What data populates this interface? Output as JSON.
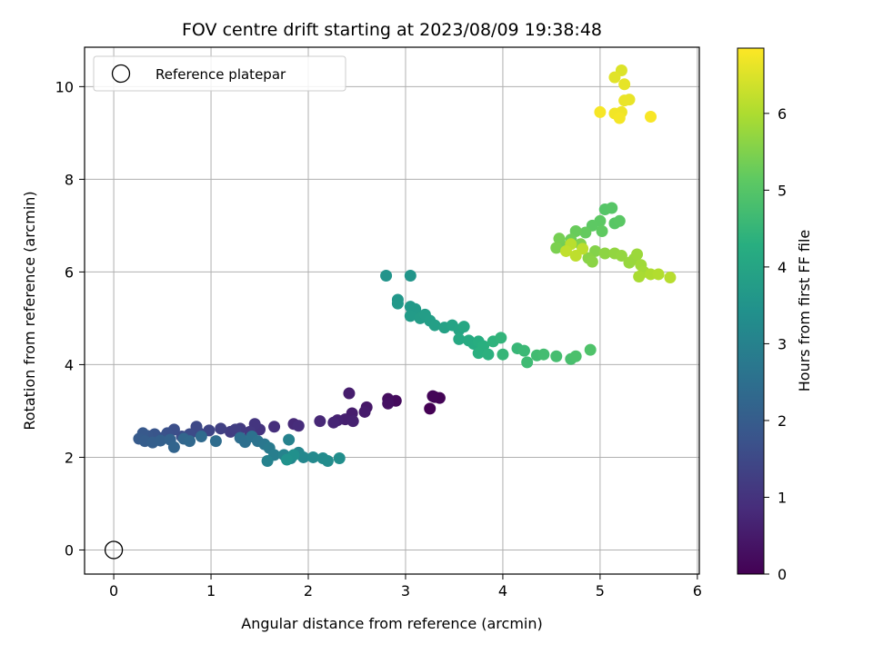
{
  "chart_data": {
    "type": "scatter",
    "title": "FOV centre drift starting at 2023/08/09 19:38:48",
    "xlabel": "Angular distance from reference (arcmin)",
    "ylabel": "Rotation from reference (arcmin)",
    "xlim": [
      -0.3,
      6.02
    ],
    "ylim": [
      -0.52,
      10.85
    ],
    "xticks": [
      "0",
      "1",
      "2",
      "3",
      "4",
      "5",
      "6"
    ],
    "yticks": [
      "0",
      "2",
      "4",
      "6",
      "8",
      "10"
    ],
    "grid": true,
    "legend": {
      "placement": "top-left",
      "entries": [
        "Reference platepar"
      ]
    },
    "reference_point": {
      "x": 0,
      "y": 0,
      "marker": "open-circle"
    },
    "colorbar": {
      "label": "Hours from first FF file",
      "colormap": "viridis",
      "range": [
        0,
        6.85
      ],
      "ticks": [
        "0",
        "1",
        "2",
        "3",
        "4",
        "5",
        "6"
      ]
    },
    "points": [
      {
        "x": 3.25,
        "y": 3.05,
        "c": 0.0
      },
      {
        "x": 3.3,
        "y": 3.3,
        "c": 0.02
      },
      {
        "x": 3.35,
        "y": 3.28,
        "c": 0.05
      },
      {
        "x": 3.28,
        "y": 3.32,
        "c": 0.08
      },
      {
        "x": 2.9,
        "y": 3.22,
        "c": 0.2
      },
      {
        "x": 2.82,
        "y": 3.26,
        "c": 0.25
      },
      {
        "x": 2.82,
        "y": 3.16,
        "c": 0.3
      },
      {
        "x": 2.6,
        "y": 3.08,
        "c": 0.45
      },
      {
        "x": 2.58,
        "y": 2.98,
        "c": 0.5
      },
      {
        "x": 2.45,
        "y": 2.95,
        "c": 0.55
      },
      {
        "x": 2.42,
        "y": 3.38,
        "c": 0.55
      },
      {
        "x": 2.38,
        "y": 2.82,
        "c": 0.6
      },
      {
        "x": 2.46,
        "y": 2.78,
        "c": 0.62
      },
      {
        "x": 2.3,
        "y": 2.8,
        "c": 0.65
      },
      {
        "x": 2.26,
        "y": 2.75,
        "c": 0.7
      },
      {
        "x": 2.12,
        "y": 2.78,
        "c": 0.75
      },
      {
        "x": 1.85,
        "y": 2.72,
        "c": 0.8
      },
      {
        "x": 1.9,
        "y": 2.68,
        "c": 0.85
      },
      {
        "x": 1.65,
        "y": 2.66,
        "c": 0.9
      },
      {
        "x": 1.5,
        "y": 2.6,
        "c": 1.0
      },
      {
        "x": 1.45,
        "y": 2.72,
        "c": 1.05
      },
      {
        "x": 1.4,
        "y": 2.55,
        "c": 1.1
      },
      {
        "x": 1.3,
        "y": 2.62,
        "c": 1.15
      },
      {
        "x": 1.2,
        "y": 2.55,
        "c": 1.2
      },
      {
        "x": 1.25,
        "y": 2.6,
        "c": 1.25
      },
      {
        "x": 1.1,
        "y": 2.62,
        "c": 1.3
      },
      {
        "x": 0.98,
        "y": 2.58,
        "c": 1.4
      },
      {
        "x": 0.88,
        "y": 2.52,
        "c": 1.45
      },
      {
        "x": 0.85,
        "y": 2.66,
        "c": 1.5
      },
      {
        "x": 0.78,
        "y": 2.5,
        "c": 1.55
      },
      {
        "x": 0.7,
        "y": 2.45,
        "c": 1.6
      },
      {
        "x": 0.62,
        "y": 2.6,
        "c": 1.65
      },
      {
        "x": 0.55,
        "y": 2.52,
        "c": 1.7
      },
      {
        "x": 0.5,
        "y": 2.42,
        "c": 1.75
      },
      {
        "x": 0.42,
        "y": 2.5,
        "c": 1.8
      },
      {
        "x": 0.35,
        "y": 2.46,
        "c": 1.85
      },
      {
        "x": 0.3,
        "y": 2.52,
        "c": 1.9
      },
      {
        "x": 0.26,
        "y": 2.4,
        "c": 1.95
      },
      {
        "x": 0.32,
        "y": 2.35,
        "c": 2.0
      },
      {
        "x": 0.4,
        "y": 2.32,
        "c": 2.05
      },
      {
        "x": 0.48,
        "y": 2.36,
        "c": 2.1
      },
      {
        "x": 0.58,
        "y": 2.38,
        "c": 2.15
      },
      {
        "x": 0.62,
        "y": 2.22,
        "c": 2.2
      },
      {
        "x": 0.72,
        "y": 2.4,
        "c": 2.25
      },
      {
        "x": 0.78,
        "y": 2.35,
        "c": 2.3
      },
      {
        "x": 0.9,
        "y": 2.45,
        "c": 2.35
      },
      {
        "x": 1.05,
        "y": 2.35,
        "c": 2.4
      },
      {
        "x": 1.3,
        "y": 2.42,
        "c": 2.45
      },
      {
        "x": 1.35,
        "y": 2.33,
        "c": 2.5
      },
      {
        "x": 1.42,
        "y": 2.45,
        "c": 2.55
      },
      {
        "x": 1.48,
        "y": 2.35,
        "c": 2.6
      },
      {
        "x": 1.55,
        "y": 2.28,
        "c": 2.7
      },
      {
        "x": 1.6,
        "y": 2.2,
        "c": 2.8
      },
      {
        "x": 1.65,
        "y": 2.05,
        "c": 2.9
      },
      {
        "x": 1.58,
        "y": 1.92,
        "c": 3.0
      },
      {
        "x": 1.8,
        "y": 2.38,
        "c": 3.0
      },
      {
        "x": 1.75,
        "y": 2.05,
        "c": 3.05
      },
      {
        "x": 1.82,
        "y": 1.98,
        "c": 3.1
      },
      {
        "x": 1.9,
        "y": 2.1,
        "c": 3.12
      },
      {
        "x": 1.95,
        "y": 2.0,
        "c": 3.15
      },
      {
        "x": 2.05,
        "y": 2.0,
        "c": 3.2
      },
      {
        "x": 2.15,
        "y": 1.98,
        "c": 3.25
      },
      {
        "x": 2.2,
        "y": 1.92,
        "c": 3.3
      },
      {
        "x": 2.32,
        "y": 1.98,
        "c": 3.35
      },
      {
        "x": 1.85,
        "y": 2.05,
        "c": 3.4
      },
      {
        "x": 1.78,
        "y": 1.95,
        "c": 3.45
      },
      {
        "x": 2.8,
        "y": 5.92,
        "c": 3.5
      },
      {
        "x": 3.05,
        "y": 5.92,
        "c": 3.55
      },
      {
        "x": 2.92,
        "y": 5.4,
        "c": 3.6
      },
      {
        "x": 2.92,
        "y": 5.32,
        "c": 3.62
      },
      {
        "x": 3.05,
        "y": 5.25,
        "c": 3.65
      },
      {
        "x": 3.1,
        "y": 5.2,
        "c": 3.7
      },
      {
        "x": 3.05,
        "y": 5.05,
        "c": 3.72
      },
      {
        "x": 3.15,
        "y": 5.0,
        "c": 3.75
      },
      {
        "x": 3.2,
        "y": 5.08,
        "c": 3.78
      },
      {
        "x": 3.25,
        "y": 4.95,
        "c": 3.8
      },
      {
        "x": 3.3,
        "y": 4.85,
        "c": 3.85
      },
      {
        "x": 3.4,
        "y": 4.8,
        "c": 3.9
      },
      {
        "x": 3.48,
        "y": 4.85,
        "c": 3.95
      },
      {
        "x": 3.55,
        "y": 4.75,
        "c": 4.0
      },
      {
        "x": 3.6,
        "y": 4.82,
        "c": 4.05
      },
      {
        "x": 3.55,
        "y": 4.55,
        "c": 4.1
      },
      {
        "x": 3.65,
        "y": 4.52,
        "c": 4.15
      },
      {
        "x": 3.7,
        "y": 4.45,
        "c": 4.2
      },
      {
        "x": 3.75,
        "y": 4.5,
        "c": 4.25
      },
      {
        "x": 3.8,
        "y": 4.4,
        "c": 4.3
      },
      {
        "x": 3.75,
        "y": 4.25,
        "c": 4.32
      },
      {
        "x": 3.85,
        "y": 4.22,
        "c": 4.35
      },
      {
        "x": 3.9,
        "y": 4.5,
        "c": 4.4
      },
      {
        "x": 3.98,
        "y": 4.58,
        "c": 4.45
      },
      {
        "x": 4.0,
        "y": 4.22,
        "c": 4.5
      },
      {
        "x": 4.15,
        "y": 4.35,
        "c": 4.55
      },
      {
        "x": 4.22,
        "y": 4.3,
        "c": 4.6
      },
      {
        "x": 4.25,
        "y": 4.05,
        "c": 4.65
      },
      {
        "x": 4.35,
        "y": 4.2,
        "c": 4.7
      },
      {
        "x": 4.42,
        "y": 4.22,
        "c": 4.72
      },
      {
        "x": 4.55,
        "y": 4.18,
        "c": 4.75
      },
      {
        "x": 4.7,
        "y": 4.12,
        "c": 4.8
      },
      {
        "x": 4.75,
        "y": 4.18,
        "c": 4.85
      },
      {
        "x": 4.9,
        "y": 4.32,
        "c": 4.9
      },
      {
        "x": 5.05,
        "y": 7.35,
        "c": 5.0
      },
      {
        "x": 5.12,
        "y": 7.38,
        "c": 5.02
      },
      {
        "x": 5.15,
        "y": 7.05,
        "c": 5.05
      },
      {
        "x": 5.2,
        "y": 7.1,
        "c": 5.08
      },
      {
        "x": 5.0,
        "y": 7.1,
        "c": 5.1
      },
      {
        "x": 4.92,
        "y": 7.0,
        "c": 5.12
      },
      {
        "x": 5.02,
        "y": 6.88,
        "c": 5.15
      },
      {
        "x": 4.85,
        "y": 6.85,
        "c": 5.2
      },
      {
        "x": 4.75,
        "y": 6.88,
        "c": 5.25
      },
      {
        "x": 4.7,
        "y": 6.7,
        "c": 5.3
      },
      {
        "x": 4.62,
        "y": 6.55,
        "c": 5.35
      },
      {
        "x": 4.58,
        "y": 6.72,
        "c": 5.4
      },
      {
        "x": 4.55,
        "y": 6.52,
        "c": 5.45
      },
      {
        "x": 4.8,
        "y": 6.6,
        "c": 5.5
      },
      {
        "x": 4.95,
        "y": 6.45,
        "c": 5.55
      },
      {
        "x": 4.88,
        "y": 6.3,
        "c": 5.6
      },
      {
        "x": 4.92,
        "y": 6.22,
        "c": 5.62
      },
      {
        "x": 5.05,
        "y": 6.4,
        "c": 5.65
      },
      {
        "x": 5.15,
        "y": 6.4,
        "c": 5.7
      },
      {
        "x": 5.22,
        "y": 6.35,
        "c": 5.72
      },
      {
        "x": 5.3,
        "y": 6.2,
        "c": 5.75
      },
      {
        "x": 5.35,
        "y": 6.28,
        "c": 5.78
      },
      {
        "x": 5.38,
        "y": 6.38,
        "c": 5.8
      },
      {
        "x": 5.42,
        "y": 6.15,
        "c": 5.85
      },
      {
        "x": 5.45,
        "y": 6.0,
        "c": 5.9
      },
      {
        "x": 5.4,
        "y": 5.9,
        "c": 5.95
      },
      {
        "x": 5.52,
        "y": 5.95,
        "c": 6.0
      },
      {
        "x": 5.6,
        "y": 5.95,
        "c": 6.05
      },
      {
        "x": 5.72,
        "y": 5.88,
        "c": 6.1
      },
      {
        "x": 4.7,
        "y": 6.6,
        "c": 6.12
      },
      {
        "x": 4.82,
        "y": 6.5,
        "c": 6.15
      },
      {
        "x": 4.75,
        "y": 6.35,
        "c": 6.18
      },
      {
        "x": 4.65,
        "y": 6.45,
        "c": 6.2
      },
      {
        "x": 5.22,
        "y": 10.35,
        "c": 6.5
      },
      {
        "x": 5.15,
        "y": 10.2,
        "c": 6.55
      },
      {
        "x": 5.25,
        "y": 10.05,
        "c": 6.6
      },
      {
        "x": 5.3,
        "y": 9.72,
        "c": 6.62
      },
      {
        "x": 5.25,
        "y": 9.7,
        "c": 6.65
      },
      {
        "x": 5.22,
        "y": 9.45,
        "c": 6.7
      },
      {
        "x": 5.15,
        "y": 9.42,
        "c": 6.72
      },
      {
        "x": 5.2,
        "y": 9.32,
        "c": 6.75
      },
      {
        "x": 5.0,
        "y": 9.45,
        "c": 6.78
      },
      {
        "x": 5.52,
        "y": 9.35,
        "c": 6.8
      }
    ]
  }
}
